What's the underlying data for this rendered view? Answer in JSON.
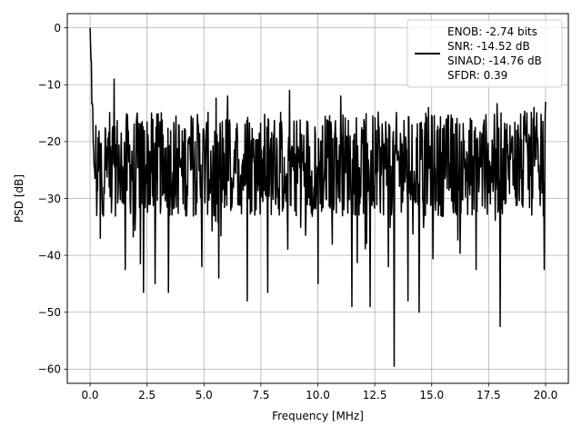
{
  "chart_data": {
    "type": "line",
    "title": "",
    "xlabel": "Frequency [MHz]",
    "ylabel": "PSD [dB]",
    "xlim": [
      -1.0,
      21.0
    ],
    "ylim": [
      -62.5,
      2.5
    ],
    "x_ticks": [
      0.0,
      2.5,
      5.0,
      7.5,
      10.0,
      12.5,
      15.0,
      17.5,
      20.0
    ],
    "x_tick_labels": [
      "0.0",
      "2.5",
      "5.0",
      "7.5",
      "10.0",
      "12.5",
      "15.0",
      "17.5",
      "20.0"
    ],
    "y_ticks": [
      0,
      -10,
      -20,
      -30,
      -40,
      -50,
      -60
    ],
    "y_tick_labels": [
      "0",
      "−10",
      "−20",
      "−30",
      "−40",
      "−50",
      "−60"
    ],
    "grid": true,
    "legend_position": "top-right",
    "series": [
      {
        "name": "ENOB: -2.74 bits\nSNR: -14.52 dB\nSINAD: -14.76 dB\nSFDR: 0.39",
        "color": "#000000",
        "x_range": [
          0.0,
          20.0
        ],
        "points": 1024,
        "dc_peak": 0,
        "mean": -24,
        "upper_envelope": -17,
        "lower_envelope": -33,
        "notable_points": [
          {
            "x": 0.0,
            "y": 0
          },
          {
            "x": 0.05,
            "y": -6
          },
          {
            "x": 0.12,
            "y": -14
          },
          {
            "x": 0.3,
            "y": -33
          },
          {
            "x": 0.45,
            "y": -37
          },
          {
            "x": 1.05,
            "y": -9
          },
          {
            "x": 1.55,
            "y": -42.5
          },
          {
            "x": 2.2,
            "y": -41.5
          },
          {
            "x": 2.35,
            "y": -46.5
          },
          {
            "x": 2.85,
            "y": -45
          },
          {
            "x": 3.45,
            "y": -46.5
          },
          {
            "x": 4.9,
            "y": -42
          },
          {
            "x": 5.65,
            "y": -44
          },
          {
            "x": 6.05,
            "y": -12
          },
          {
            "x": 6.9,
            "y": -48
          },
          {
            "x": 7.8,
            "y": -46.5
          },
          {
            "x": 8.75,
            "y": -11
          },
          {
            "x": 10.0,
            "y": -45
          },
          {
            "x": 11.0,
            "y": -12
          },
          {
            "x": 11.5,
            "y": -49
          },
          {
            "x": 12.3,
            "y": -49
          },
          {
            "x": 13.1,
            "y": -42
          },
          {
            "x": 13.35,
            "y": -59.5
          },
          {
            "x": 13.95,
            "y": -48
          },
          {
            "x": 14.45,
            "y": -50
          },
          {
            "x": 14.85,
            "y": -14
          },
          {
            "x": 16.95,
            "y": -42.5
          },
          {
            "x": 18.0,
            "y": -52.5
          },
          {
            "x": 19.5,
            "y": -14
          },
          {
            "x": 19.95,
            "y": -42.5
          },
          {
            "x": 20.0,
            "y": -13
          }
        ]
      }
    ]
  }
}
